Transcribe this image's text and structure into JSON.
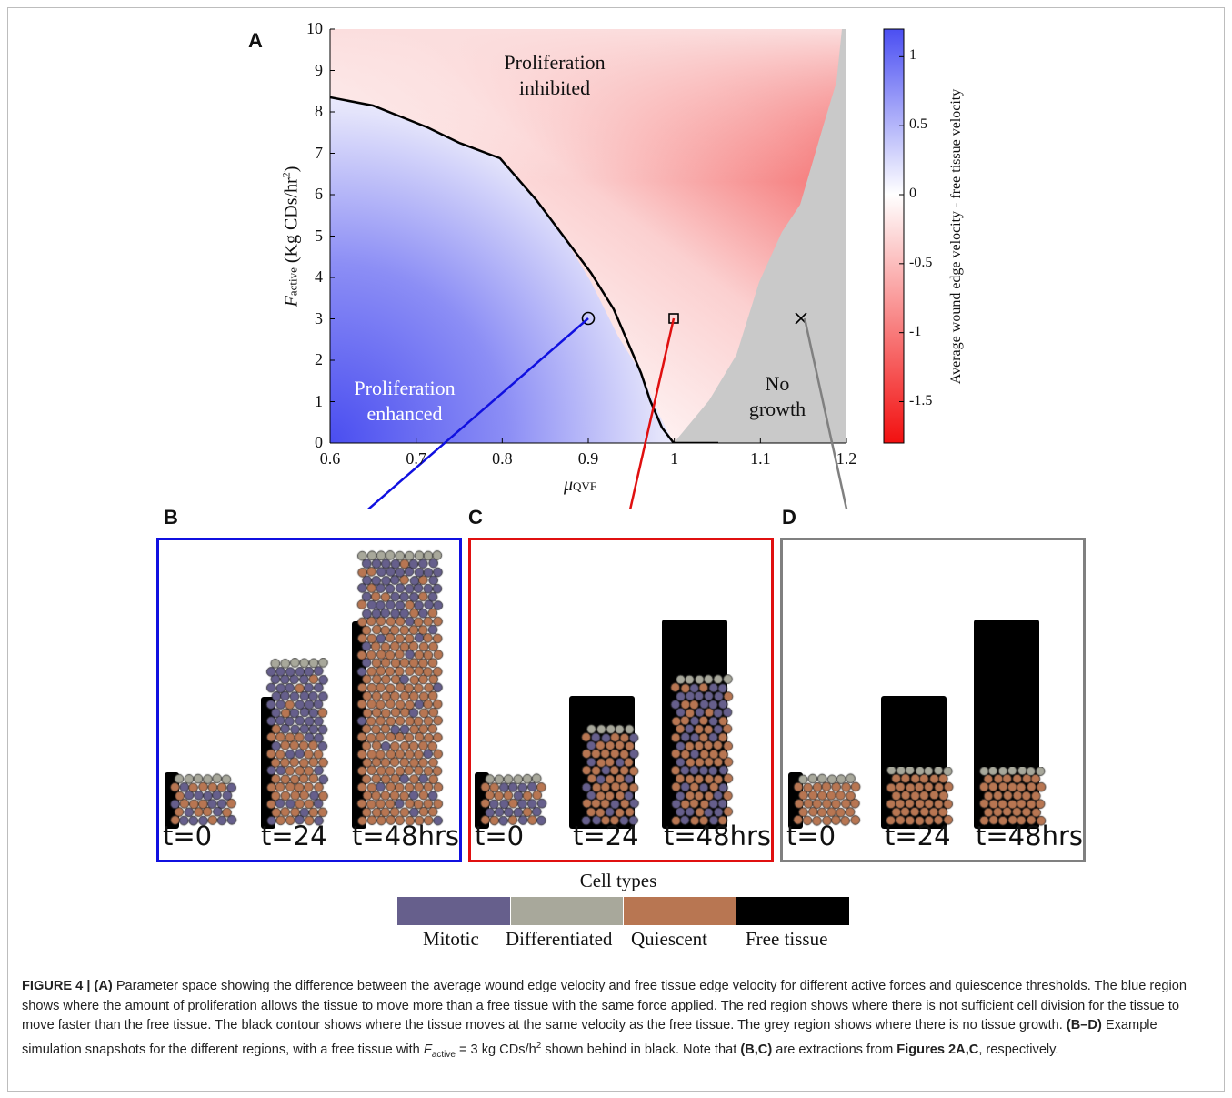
{
  "figure": {
    "panel_labels": {
      "a": "A",
      "b": "B",
      "c": "C",
      "d": "D"
    },
    "heatmap": {
      "xlabel": "μQVF",
      "ylabel": "Factive (Kg CDs/hr2)",
      "xticks": [
        "0.6",
        "0.7",
        "0.8",
        "0.9",
        "1",
        "1.1",
        "1.2"
      ],
      "yticks": [
        "0",
        "1",
        "2",
        "3",
        "4",
        "5",
        "6",
        "7",
        "8",
        "9",
        "10"
      ],
      "colorbar_label": "Average wound edge velocity - free tissue velocity",
      "colorbar_ticks": [
        "1",
        "0.5",
        "0",
        "-0.5",
        "-1",
        "-1.5"
      ],
      "region_labels": {
        "inhibited_1": "Proliferation",
        "inhibited_2": "inhibited",
        "enhanced_1": "Proliferation",
        "enhanced_2": "enhanced",
        "nogrowth_1": "No",
        "nogrowth_2": "growth"
      }
    },
    "snapshots": {
      "time_labels": [
        "t=0",
        "t=24",
        "t=48hrs"
      ],
      "panels": [
        {
          "id": "B",
          "border_color": "#1010e0",
          "frac_top": [
            0,
            0.55,
            0.4
          ],
          "frac_bottom": [
            1,
            1,
            1
          ],
          "free_tissue": "behind"
        },
        {
          "id": "C",
          "border_color": "#e01010",
          "free_tissue": "tall"
        },
        {
          "id": "D",
          "border_color": "#808080",
          "free_tissue": "tall"
        }
      ]
    },
    "legend": {
      "title": "Cell types",
      "items": [
        {
          "label": "Mitotic",
          "color": "#665f8c"
        },
        {
          "label": "Differentiated",
          "color": "#a8a89b"
        },
        {
          "label": "Quiescent",
          "color": "#b87652"
        },
        {
          "label": "Free tissue",
          "color": "#000000"
        }
      ]
    }
  },
  "caption": {
    "figure_label": "FIGURE 4 | (A)",
    "text_1": "Parameter space showing the difference between the average wound edge velocity and free tissue edge velocity for different active forces and quiescence thresholds. The blue region shows where the amount of proliferation allows the tissue to move more than a free tissue with the same force applied. The red region shows where there is not sufficient cell division for the tissue to move faster than the free tissue. The black contour shows where the tissue moves at the same velocity as the free tissue. The grey region shows where there is no tissue growth.",
    "bd_label": "(B–D)",
    "text_2": "Example simulation snapshots for the different regions, with a free tissue with",
    "factive_sym": "F",
    "factive_sub": "active",
    "text_3": "= 3 kg CDs/h",
    "text_3_sup": "2",
    "text_4": "shown behind in black. Note that",
    "bc_label": "(B,C)",
    "text_5": "are extractions from",
    "fig_ref": "Figures 2A,C",
    "text_6": ", respectively."
  }
}
